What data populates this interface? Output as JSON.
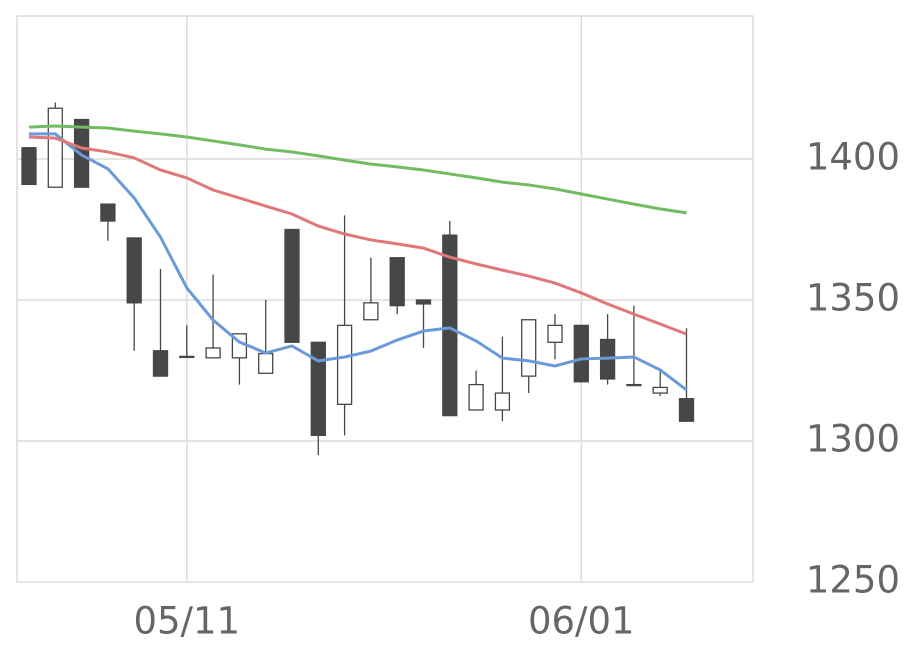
{
  "chart_data": {
    "type": "candlestick",
    "categories": [
      null,
      null,
      null,
      null,
      null,
      null,
      "05/11",
      null,
      null,
      null,
      null,
      null,
      null,
      null,
      null,
      null,
      null,
      null,
      null,
      null,
      null,
      "06/01",
      null,
      null,
      null,
      null
    ],
    "open": [
      1404,
      1390,
      1414,
      1384,
      1372,
      1332,
      1330,
      1329.5,
      1329.5,
      1324,
      1375,
      1335,
      1313,
      1343,
      1365,
      1350,
      1373,
      1311,
      1311,
      1323,
      1335,
      1341,
      1336,
      1320,
      1317,
      1315
    ],
    "high": [
      1404,
      1420,
      1414,
      1384,
      1372,
      1361,
      1341,
      1359,
      1338,
      1350,
      1375,
      1335,
      1380,
      1365,
      1365,
      1350,
      1378,
      1325,
      1337,
      1343,
      1345,
      1341,
      1345,
      1348,
      1325,
      1340
    ],
    "low": [
      1391,
      1390,
      1390,
      1371,
      1332,
      1323,
      1330,
      1329.5,
      1320,
      1324,
      1335,
      1295,
      1302,
      1343,
      1345,
      1333,
      1309,
      1311,
      1307,
      1317,
      1329,
      1321,
      1320,
      1320,
      1316,
      1307
    ],
    "close": [
      1391,
      1418,
      1390,
      1378,
      1349,
      1323,
      1330,
      1333,
      1338,
      1331,
      1335,
      1302,
      1341,
      1349,
      1348,
      1348.6,
      1309,
      1320,
      1317,
      1343,
      1341,
      1321,
      1322,
      1320,
      1319,
      1307
    ],
    "up_color": "#ffffff",
    "down_color": "#474747",
    "edge_color": "#474747",
    "moving_averages": [
      {
        "color": "#6a9bd8",
        "values": [
          1408.9,
          1408.9,
          1401.4,
          1396.5,
          1386.2,
          1372.3,
          1354.3,
          1342.9,
          1335.1,
          1331.2,
          1333.7,
          1328.4,
          1329.8,
          1331.9,
          1335.8,
          1339,
          1340.1,
          1335.5,
          1329.4,
          1328.4,
          1326.6,
          1329.1,
          1329.4,
          1329.8,
          1325.2,
          1318.1
        ]
      },
      {
        "color": "#e07878",
        "values": [
          1407.8,
          1407.4,
          1403.9,
          1402.5,
          1400.4,
          1396.1,
          1393.3,
          1389,
          1386.2,
          1383.3,
          1380.5,
          1376.2,
          1373.4,
          1371.3,
          1369.9,
          1368.4,
          1365.2,
          1362.8,
          1360.6,
          1358.5,
          1356,
          1352.5,
          1348.6,
          1345,
          1341.5,
          1337.9
        ]
      },
      {
        "color": "#72bb63",
        "values": [
          1411.3,
          1411.7,
          1411.3,
          1411,
          1409.9,
          1408.9,
          1407.8,
          1406.4,
          1405,
          1403.5,
          1402.5,
          1401.1,
          1399.6,
          1398.2,
          1397.2,
          1396.1,
          1394.7,
          1393.3,
          1391.8,
          1390.8,
          1389.4,
          1387.6,
          1385.8,
          1384,
          1382.3,
          1380.9
        ]
      }
    ],
    "ylim": [
      1250,
      1450
    ],
    "yticks": [
      1250,
      1300,
      1350,
      1400
    ],
    "grid": true
  }
}
